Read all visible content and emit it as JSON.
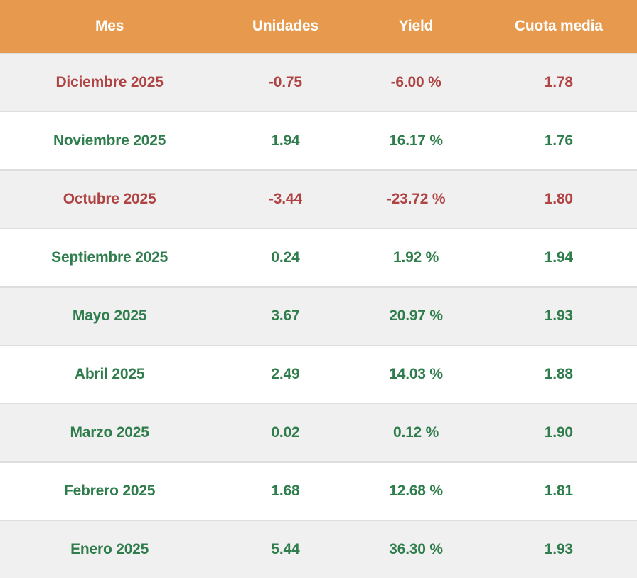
{
  "colors": {
    "header_bg": "#E79A4D",
    "header_text": "#FFFFFF",
    "row_alt_bg": "#F0F0F0",
    "row_bg": "#FFFFFF",
    "border": "#DDDDDD",
    "positive": "#2F7D4C",
    "negative": "#B04343"
  },
  "table": {
    "columns": [
      "Mes",
      "Unidades",
      "Yield",
      "Cuota media"
    ],
    "column_keys": [
      "mes",
      "unidades",
      "yield",
      "cuota_media"
    ],
    "rows": [
      {
        "mes": "Diciembre 2025",
        "unidades": "-0.75",
        "yield": "-6.00 %",
        "cuota_media": "1.78",
        "trend": "negative"
      },
      {
        "mes": "Noviembre 2025",
        "unidades": "1.94",
        "yield": "16.17 %",
        "cuota_media": "1.76",
        "trend": "positive"
      },
      {
        "mes": "Octubre 2025",
        "unidades": "-3.44",
        "yield": "-23.72 %",
        "cuota_media": "1.80",
        "trend": "negative"
      },
      {
        "mes": "Septiembre 2025",
        "unidades": "0.24",
        "yield": "1.92 %",
        "cuota_media": "1.94",
        "trend": "positive"
      },
      {
        "mes": "Mayo 2025",
        "unidades": "3.67",
        "yield": "20.97 %",
        "cuota_media": "1.93",
        "trend": "positive"
      },
      {
        "mes": "Abril 2025",
        "unidades": "2.49",
        "yield": "14.03 %",
        "cuota_media": "1.88",
        "trend": "positive"
      },
      {
        "mes": "Marzo 2025",
        "unidades": "0.02",
        "yield": "0.12 %",
        "cuota_media": "1.90",
        "trend": "positive"
      },
      {
        "mes": "Febrero 2025",
        "unidades": "1.68",
        "yield": "12.68 %",
        "cuota_media": "1.81",
        "trend": "positive"
      },
      {
        "mes": "Enero 2025",
        "unidades": "5.44",
        "yield": "36.30 %",
        "cuota_media": "1.93",
        "trend": "positive"
      }
    ]
  },
  "chart_data": {
    "type": "table",
    "title": "",
    "columns": [
      "Mes",
      "Unidades",
      "Yield",
      "Cuota media"
    ],
    "rows": [
      [
        "Diciembre 2025",
        -0.75,
        "-6.00 %",
        1.78
      ],
      [
        "Noviembre 2025",
        1.94,
        "16.17 %",
        1.76
      ],
      [
        "Octubre 2025",
        -3.44,
        "-23.72 %",
        1.8
      ],
      [
        "Septiembre 2025",
        0.24,
        "1.92 %",
        1.94
      ],
      [
        "Mayo 2025",
        3.67,
        "20.97 %",
        1.93
      ],
      [
        "Abril 2025",
        2.49,
        "14.03 %",
        1.88
      ],
      [
        "Marzo 2025",
        0.02,
        "0.12 %",
        1.9
      ],
      [
        "Febrero 2025",
        1.68,
        "12.68 %",
        1.81
      ],
      [
        "Enero 2025",
        5.44,
        "36.30 %",
        1.93
      ]
    ],
    "layout_hints": {
      "header_background": "#E79A4D",
      "alternating_rows": true,
      "negative_rows_color": "#B04343",
      "positive_rows_color": "#2F7D4C",
      "alignment": "center"
    }
  }
}
